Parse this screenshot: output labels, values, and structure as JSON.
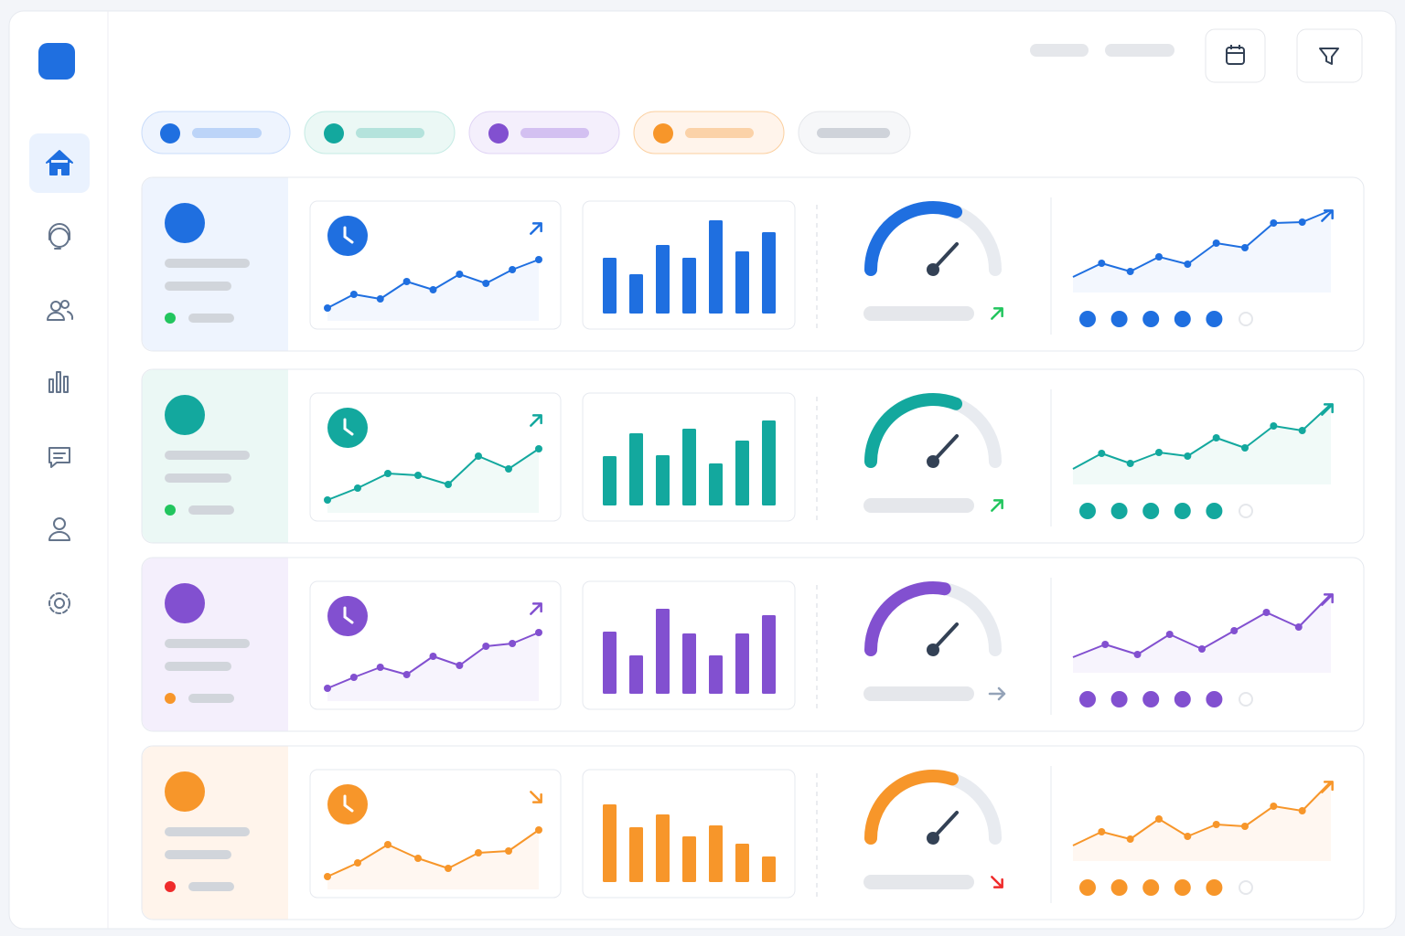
{
  "chart_data": {
    "type": "dashboard-rows",
    "line_ylim": [
      0,
      65
    ],
    "bar_ylim": [
      0,
      110
    ],
    "trend_ylim": [
      0,
      80
    ],
    "rows": [
      {
        "color": "#1f6fe0",
        "tint": "#eef4fe",
        "status_color": "#22c55e",
        "line_trend": "up",
        "gauge_trend": "up",
        "gauge_trend_color": "#22c55e",
        "line_values": [
          0,
          15,
          10,
          29,
          20,
          37,
          27,
          42,
          53
        ],
        "bar_values": [
          61,
          43,
          75,
          61,
          102,
          68,
          89
        ],
        "gauge_value": 0.62,
        "trend_values": [
          0,
          15,
          6,
          22,
          14,
          37,
          32,
          59,
          60,
          73
        ],
        "trend_dots": [
          1,
          1,
          1,
          1,
          1,
          0
        ]
      },
      {
        "color": "#13a89e",
        "tint": "#ebf8f5",
        "status_color": "#22c55e",
        "line_trend": "up",
        "gauge_trend": "up",
        "gauge_trend_color": "#22c55e",
        "line_values": [
          0,
          13,
          29,
          27,
          17,
          48,
          34,
          56
        ],
        "bar_values": [
          54,
          79,
          55,
          84,
          46,
          71,
          93
        ],
        "gauge_value": 0.62,
        "trend_values": [
          0,
          17,
          6,
          18,
          14,
          34,
          23,
          47,
          42,
          71
        ],
        "trend_dots": [
          1,
          1,
          1,
          1,
          1,
          0
        ]
      },
      {
        "color": "#8250d0",
        "tint": "#f4effc",
        "status_color": "#f7962a",
        "line_trend": "up",
        "gauge_trend": "flat",
        "gauge_trend_color": "#94a3b8",
        "line_values": [
          0,
          12,
          23,
          15,
          35,
          25,
          46,
          49,
          61
        ],
        "bar_values": [
          68,
          42,
          93,
          66,
          42,
          66,
          86
        ],
        "gauge_value": 0.56,
        "trend_values": [
          0,
          14,
          3,
          25,
          9,
          29,
          49,
          33,
          69
        ],
        "trend_dots": [
          1,
          1,
          1,
          1,
          1,
          0
        ]
      },
      {
        "color": "#f7962a",
        "tint": "#fff4eb",
        "status_color": "#ef2b2b",
        "line_trend": "down",
        "gauge_trend": "down",
        "gauge_trend_color": "#ef2b2b",
        "line_values": [
          0,
          15,
          35,
          20,
          9,
          26,
          28,
          51
        ],
        "bar_values": [
          85,
          60,
          74,
          50,
          62,
          42,
          28
        ],
        "gauge_value": 0.6,
        "trend_values": [
          0,
          15,
          7,
          29,
          10,
          23,
          21,
          43,
          38,
          70
        ],
        "trend_dots": [
          1,
          1,
          1,
          1,
          1,
          0
        ]
      }
    ]
  }
}
